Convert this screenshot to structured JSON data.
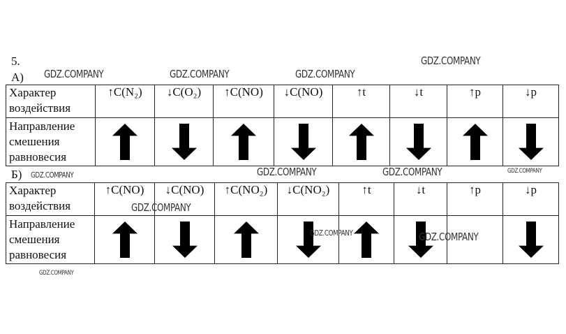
{
  "number": "5.",
  "part_a": {
    "label": "А)",
    "row1_label": "Характер воздействия",
    "row2_label": "Направление смешения равновесия",
    "factors": [
      "↑C(N₂)",
      "↓C(O₂)",
      "↑C(NO)",
      "↓C(NO)",
      "↑t",
      "↓t",
      "↑p",
      "↓p"
    ],
    "shifts": [
      "up",
      "down",
      "up",
      "down",
      "up",
      "down",
      "up",
      "down"
    ]
  },
  "part_b": {
    "label": "Б)",
    "row1_label": "Характер воздействия",
    "row2_label": "Направление смешения равновесия",
    "factors": [
      "↑C(NO)",
      "↓C(NO)",
      "↑C(NO₂)",
      "↓C(NO₂)",
      "↑t",
      "↓t",
      "↑p",
      "↓p"
    ],
    "shifts": [
      "up",
      "down",
      "up",
      "down",
      "up",
      "down",
      "",
      "down"
    ]
  },
  "watermarks": [
    "GDZ.COMPANY",
    "GDZ.COMPANY",
    "GDZ.COMPANY",
    "GDZ.COMPANY",
    "GDZ.COMPANY",
    "GDZ.COMPANY",
    "GDZ.COMPANY",
    "GDZ.COMPANY",
    "GDZ.COMPANY",
    "GDZ.COMPANY",
    "GDZ.COMPANY",
    "GDZ.COMPANY"
  ]
}
